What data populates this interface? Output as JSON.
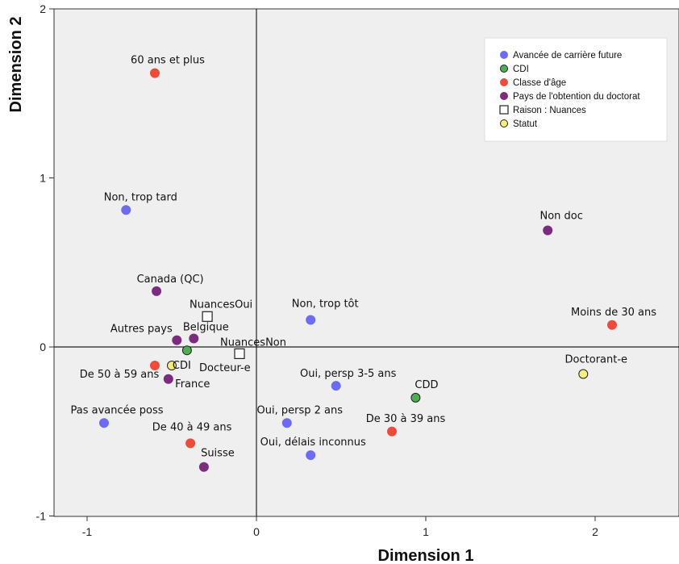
{
  "chart_data": {
    "type": "scatter",
    "xlabel": "Dimension 1",
    "ylabel": "Dimension 2",
    "xlim": [
      -1.3,
      2.5
    ],
    "ylim": [
      -1,
      2
    ],
    "xticks": [
      -1,
      0,
      1,
      2
    ],
    "yticks": [
      -1,
      0,
      1,
      2
    ],
    "legend_position": "top-right",
    "reference_lines": [
      0,
      0
    ],
    "series": [
      {
        "name": "Avancée de carrière future",
        "color": "#6b6bf5",
        "marker": "circle",
        "points": [
          {
            "label": "Non, trop tard",
            "x": -0.77,
            "y": 0.81
          },
          {
            "label": "Non, trop tôt",
            "x": 0.32,
            "y": 0.16
          },
          {
            "label": "Oui, persp 3-5 ans",
            "x": 0.47,
            "y": -0.23
          },
          {
            "label": "Pas avancée poss",
            "x": -0.9,
            "y": -0.45
          },
          {
            "label": "Oui, persp 2 ans",
            "x": 0.18,
            "y": -0.45
          },
          {
            "label": "Oui, délais inconnus",
            "x": 0.32,
            "y": -0.64
          }
        ]
      },
      {
        "name": "CDI",
        "color": "#4caf50",
        "marker": "circle",
        "points": [
          {
            "label": "CDI",
            "x": -0.41,
            "y": -0.02
          },
          {
            "label": "CDD",
            "x": 0.94,
            "y": -0.3
          }
        ]
      },
      {
        "name": "Classe d'âge",
        "color": "#f04a3a",
        "marker": "circle",
        "points": [
          {
            "label": "60 ans et plus",
            "x": -0.6,
            "y": 1.62
          },
          {
            "label": "Moins de 30 ans",
            "x": 2.1,
            "y": 0.13
          },
          {
            "label": "De 50 à 59 ans",
            "x": -0.6,
            "y": -0.11
          },
          {
            "label": "De 30 à 39 ans",
            "x": 0.8,
            "y": -0.5
          },
          {
            "label": "De 40 à 49 ans",
            "x": -0.39,
            "y": -0.57
          }
        ]
      },
      {
        "name": "Pays de l'obtention du doctorat",
        "color": "#7b2c7f",
        "marker": "circle",
        "points": [
          {
            "label": "Non doc",
            "x": 1.72,
            "y": 0.69
          },
          {
            "label": "Canada (QC)",
            "x": -0.59,
            "y": 0.33
          },
          {
            "label": "Autres pays",
            "x": -0.47,
            "y": 0.04
          },
          {
            "label": "Belgique",
            "x": -0.37,
            "y": 0.05
          },
          {
            "label": "France",
            "x": -0.52,
            "y": -0.19
          },
          {
            "label": "Suisse",
            "x": -0.31,
            "y": -0.71
          }
        ]
      },
      {
        "name": "Raison : Nuances",
        "color": "#ffffff",
        "marker": "square",
        "points": [
          {
            "label": "NuancesOui",
            "x": -0.29,
            "y": 0.18
          },
          {
            "label": "NuancesNon",
            "x": -0.1,
            "y": -0.04
          }
        ]
      },
      {
        "name": "Statut",
        "color": "#f5f07a",
        "marker": "circle",
        "points": [
          {
            "label": "Docteur-e",
            "x": -0.5,
            "y": -0.11
          },
          {
            "label": "Doctorant-e",
            "x": 1.93,
            "y": -0.16
          }
        ]
      }
    ]
  }
}
